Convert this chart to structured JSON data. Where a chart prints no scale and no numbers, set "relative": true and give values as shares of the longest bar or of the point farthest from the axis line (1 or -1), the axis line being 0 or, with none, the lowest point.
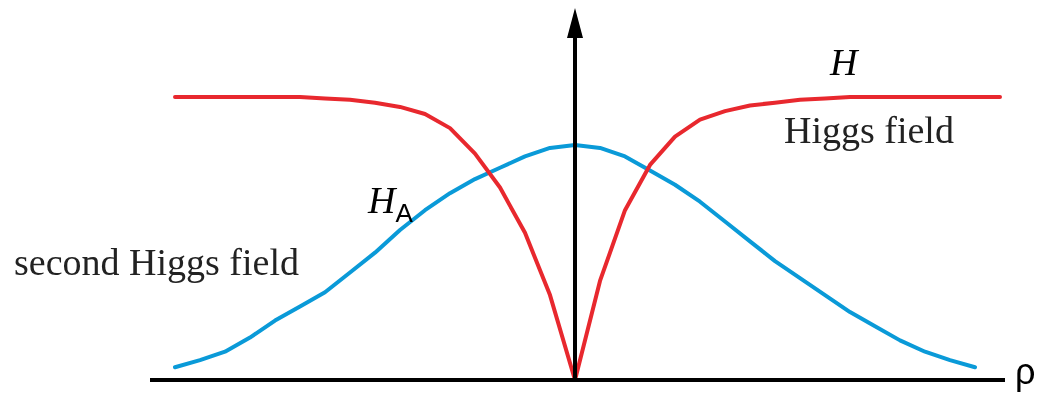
{
  "chart_data": {
    "type": "line",
    "relative": true,
    "xlabel": "ρ",
    "legend": false,
    "marker": "none",
    "line_style": "solid",
    "categories": [
      null,
      null,
      null,
      null,
      null,
      null,
      null,
      null,
      null,
      null,
      null,
      null,
      null,
      null,
      null,
      null,
      null,
      null,
      null,
      null,
      null,
      null,
      null,
      null,
      null,
      null,
      null,
      null,
      null,
      null,
      null,
      null,
      null,
      null
    ],
    "series": [
      {
        "name": "H",
        "color": "#e8282e",
        "values": [
          1,
          1,
          1,
          1,
          1,
          1,
          0.995,
          0.99,
          0.98,
          0.965,
          0.94,
          0.89,
          0.8,
          0.68,
          0.52,
          0.3,
          0,
          0.35,
          0.6,
          0.76,
          0.86,
          0.92,
          0.95,
          0.97,
          0.98,
          0.99,
          0.995,
          1,
          1,
          1,
          1,
          1,
          1,
          1
        ]
      },
      {
        "name": "H$_{A}$",
        "color": "#0a9ad8",
        "values": [
          0.045,
          0.07,
          0.1,
          0.15,
          0.21,
          0.26,
          0.31,
          0.38,
          0.45,
          0.53,
          0.6,
          0.66,
          0.71,
          0.75,
          0.79,
          0.82,
          0.83,
          0.82,
          0.79,
          0.74,
          0.69,
          0.63,
          0.56,
          0.49,
          0.42,
          0.36,
          0.3,
          0.24,
          0.19,
          0.14,
          0.1,
          0.07,
          0.045,
          null
        ]
      }
    ],
    "annotations": [
      "Higgs field",
      "second Higgs field"
    ]
  }
}
